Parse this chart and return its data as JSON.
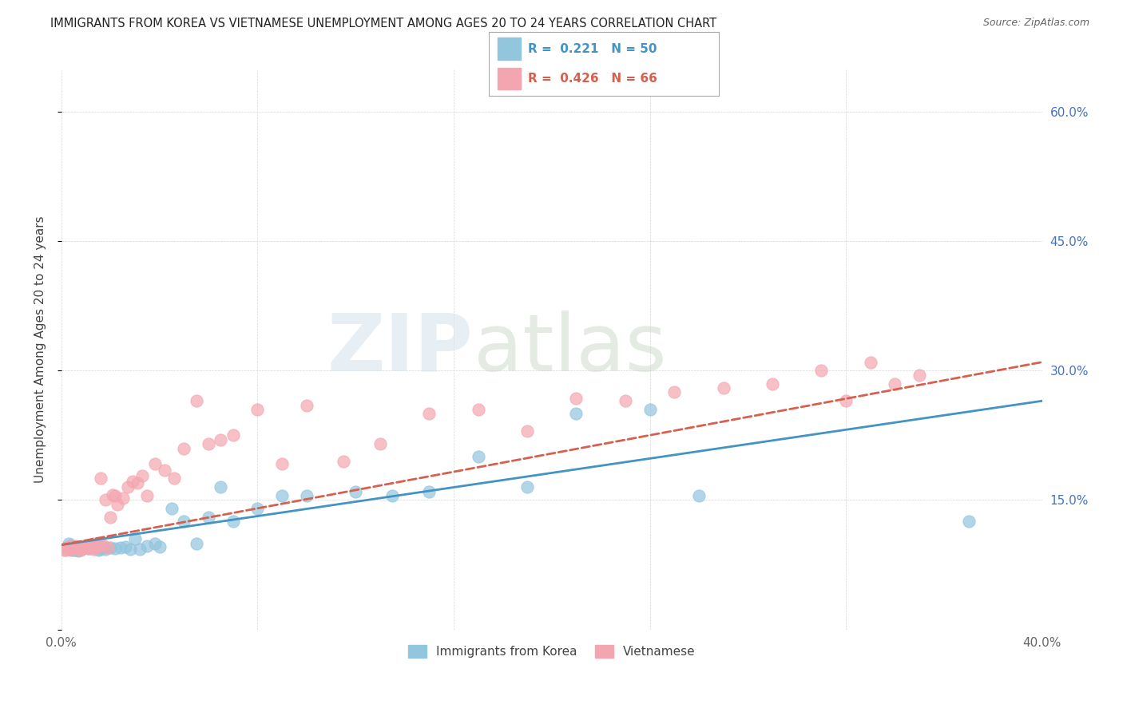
{
  "title": "IMMIGRANTS FROM KOREA VS VIETNAMESE UNEMPLOYMENT AMONG AGES 20 TO 24 YEARS CORRELATION CHART",
  "source": "Source: ZipAtlas.com",
  "ylabel": "Unemployment Among Ages 20 to 24 years",
  "xlim": [
    0.0,
    0.4
  ],
  "ylim": [
    0.0,
    0.65
  ],
  "korea_color": "#92c5de",
  "viet_color": "#f4a6b0",
  "korea_line_color": "#4393c3",
  "viet_line_color": "#d6604d",
  "background_color": "#ffffff",
  "watermark": "ZIPatlas",
  "legend_korea_r": "0.221",
  "legend_korea_n": "50",
  "legend_viet_r": "0.426",
  "legend_viet_n": "66",
  "legend_label_korea": "Immigrants from Korea",
  "legend_label_viet": "Vietnamese",
  "korea_scatter_x": [
    0.002,
    0.003,
    0.004,
    0.004,
    0.005,
    0.005,
    0.006,
    0.006,
    0.007,
    0.007,
    0.008,
    0.009,
    0.009,
    0.01,
    0.011,
    0.012,
    0.013,
    0.014,
    0.015,
    0.016,
    0.017,
    0.018,
    0.02,
    0.022,
    0.024,
    0.026,
    0.028,
    0.03,
    0.032,
    0.035,
    0.038,
    0.04,
    0.045,
    0.05,
    0.055,
    0.06,
    0.065,
    0.07,
    0.08,
    0.09,
    0.1,
    0.12,
    0.135,
    0.15,
    0.17,
    0.19,
    0.21,
    0.24,
    0.26,
    0.37
  ],
  "korea_scatter_y": [
    0.095,
    0.1,
    0.098,
    0.092,
    0.092,
    0.096,
    0.093,
    0.092,
    0.091,
    0.094,
    0.093,
    0.094,
    0.095,
    0.095,
    0.094,
    0.096,
    0.095,
    0.098,
    0.092,
    0.093,
    0.096,
    0.093,
    0.095,
    0.094,
    0.095,
    0.096,
    0.093,
    0.105,
    0.093,
    0.097,
    0.1,
    0.096,
    0.14,
    0.125,
    0.1,
    0.13,
    0.165,
    0.125,
    0.14,
    0.155,
    0.155,
    0.16,
    0.155,
    0.16,
    0.2,
    0.165,
    0.25,
    0.255,
    0.155,
    0.125
  ],
  "viet_scatter_x": [
    0.001,
    0.002,
    0.002,
    0.003,
    0.003,
    0.004,
    0.004,
    0.005,
    0.005,
    0.006,
    0.006,
    0.007,
    0.007,
    0.008,
    0.008,
    0.009,
    0.009,
    0.01,
    0.01,
    0.011,
    0.011,
    0.012,
    0.013,
    0.013,
    0.014,
    0.015,
    0.016,
    0.017,
    0.018,
    0.019,
    0.02,
    0.021,
    0.022,
    0.023,
    0.025,
    0.027,
    0.029,
    0.031,
    0.033,
    0.035,
    0.038,
    0.042,
    0.046,
    0.05,
    0.055,
    0.06,
    0.065,
    0.07,
    0.08,
    0.09,
    0.1,
    0.115,
    0.13,
    0.15,
    0.17,
    0.19,
    0.21,
    0.23,
    0.25,
    0.27,
    0.29,
    0.31,
    0.32,
    0.33,
    0.34,
    0.35
  ],
  "viet_scatter_y": [
    0.092,
    0.092,
    0.095,
    0.093,
    0.095,
    0.093,
    0.097,
    0.094,
    0.096,
    0.094,
    0.097,
    0.093,
    0.095,
    0.092,
    0.095,
    0.094,
    0.097,
    0.095,
    0.096,
    0.094,
    0.098,
    0.096,
    0.093,
    0.1,
    0.095,
    0.097,
    0.175,
    0.098,
    0.15,
    0.095,
    0.13,
    0.156,
    0.155,
    0.145,
    0.152,
    0.165,
    0.172,
    0.17,
    0.178,
    0.155,
    0.192,
    0.185,
    0.175,
    0.21,
    0.265,
    0.215,
    0.22,
    0.225,
    0.255,
    0.192,
    0.26,
    0.195,
    0.215,
    0.25,
    0.255,
    0.23,
    0.268,
    0.265,
    0.275,
    0.28,
    0.285,
    0.3,
    0.265,
    0.31,
    0.285,
    0.295
  ],
  "korea_trend_start_y": 0.098,
  "korea_trend_end_y": 0.265,
  "viet_trend_start_y": 0.098,
  "viet_trend_end_y": 0.31
}
